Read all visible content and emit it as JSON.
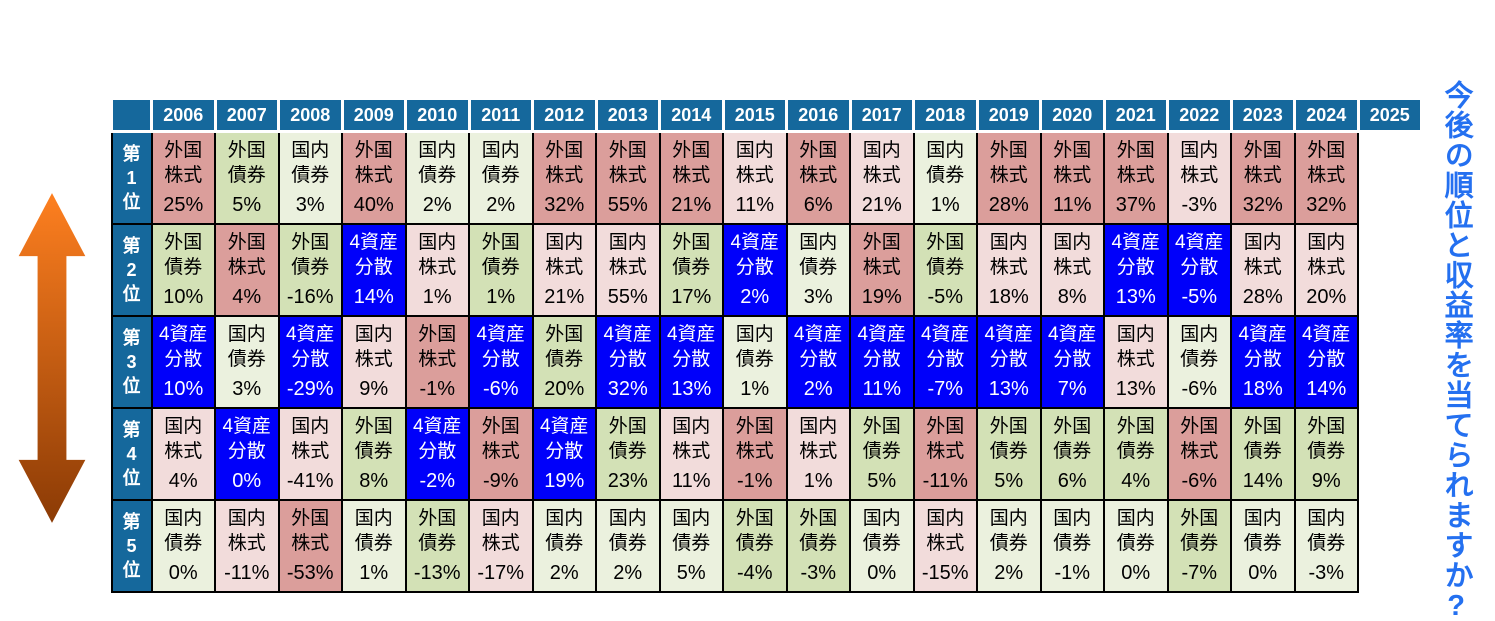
{
  "side_text": "今後の順位と収益率を当てられますか?",
  "colors": {
    "header_bg": "#15689C",
    "header_fg": "#FFFFFF",
    "grid": "#000000",
    "side_text": "#2470F0",
    "arrow_top": "#FF8020",
    "arrow_bottom": "#8A3A05"
  },
  "asset_classes": {
    "foreign_stock": {
      "label": "外国株式",
      "line1": "外国",
      "line2": "株式",
      "bg": "#DB9E9B",
      "fg": "#000000"
    },
    "domestic_stock": {
      "label": "国内株式",
      "line1": "国内",
      "line2": "株式",
      "bg": "#F2DCDB",
      "fg": "#000000"
    },
    "foreign_bond": {
      "label": "外国債券",
      "line1": "外国",
      "line2": "債券",
      "bg": "#D3E1B6",
      "fg": "#000000"
    },
    "domestic_bond": {
      "label": "国内債券",
      "line1": "国内",
      "line2": "債券",
      "bg": "#EBF1DE",
      "fg": "#000000"
    },
    "four_asset": {
      "label": "4資産分散",
      "line1": "4資産",
      "line2": "分散",
      "bg": "#0000FA",
      "fg": "#FFFFFF"
    }
  },
  "chart_data": {
    "type": "table",
    "years": [
      "2006",
      "2007",
      "2008",
      "2009",
      "2010",
      "2011",
      "2012",
      "2013",
      "2014",
      "2015",
      "2016",
      "2017",
      "2018",
      "2019",
      "2020",
      "2021",
      "2022",
      "2023",
      "2024",
      "2025"
    ],
    "ranks": [
      "第1位",
      "第2位",
      "第3位",
      "第4位",
      "第5位"
    ],
    "rows": [
      {
        "rank": "第1位",
        "cells": [
          {
            "asset": "foreign_stock",
            "value": "25%"
          },
          {
            "asset": "foreign_bond",
            "value": "5%"
          },
          {
            "asset": "domestic_bond",
            "value": "3%"
          },
          {
            "asset": "foreign_stock",
            "value": "40%"
          },
          {
            "asset": "domestic_bond",
            "value": "2%"
          },
          {
            "asset": "domestic_bond",
            "value": "2%"
          },
          {
            "asset": "foreign_stock",
            "value": "32%"
          },
          {
            "asset": "foreign_stock",
            "value": "55%"
          },
          {
            "asset": "foreign_stock",
            "value": "21%"
          },
          {
            "asset": "domestic_stock",
            "value": "11%"
          },
          {
            "asset": "foreign_stock",
            "value": "6%"
          },
          {
            "asset": "domestic_stock",
            "value": "21%"
          },
          {
            "asset": "domestic_bond",
            "value": "1%"
          },
          {
            "asset": "foreign_stock",
            "value": "28%"
          },
          {
            "asset": "foreign_stock",
            "value": "11%"
          },
          {
            "asset": "foreign_stock",
            "value": "37%"
          },
          {
            "asset": "domestic_stock",
            "value": "-3%"
          },
          {
            "asset": "foreign_stock",
            "value": "32%"
          },
          {
            "asset": "foreign_stock",
            "value": "32%"
          }
        ]
      },
      {
        "rank": "第2位",
        "cells": [
          {
            "asset": "foreign_bond",
            "value": "10%"
          },
          {
            "asset": "foreign_stock",
            "value": "4%"
          },
          {
            "asset": "foreign_bond",
            "value": "-16%"
          },
          {
            "asset": "four_asset",
            "value": "14%"
          },
          {
            "asset": "domestic_stock",
            "value": "1%"
          },
          {
            "asset": "foreign_bond",
            "value": "1%"
          },
          {
            "asset": "domestic_stock",
            "value": "21%"
          },
          {
            "asset": "domestic_stock",
            "value": "55%"
          },
          {
            "asset": "foreign_bond",
            "value": "17%"
          },
          {
            "asset": "four_asset",
            "value": "2%"
          },
          {
            "asset": "domestic_bond",
            "value": "3%"
          },
          {
            "asset": "foreign_stock",
            "value": "19%"
          },
          {
            "asset": "foreign_bond",
            "value": "-5%"
          },
          {
            "asset": "domestic_stock",
            "value": "18%"
          },
          {
            "asset": "domestic_stock",
            "value": "8%"
          },
          {
            "asset": "four_asset",
            "value": "13%"
          },
          {
            "asset": "four_asset",
            "value": "-5%"
          },
          {
            "asset": "domestic_stock",
            "value": "28%"
          },
          {
            "asset": "domestic_stock",
            "value": "20%"
          }
        ]
      },
      {
        "rank": "第3位",
        "cells": [
          {
            "asset": "four_asset",
            "value": "10%"
          },
          {
            "asset": "domestic_bond",
            "value": "3%"
          },
          {
            "asset": "four_asset",
            "value": "-29%"
          },
          {
            "asset": "domestic_stock",
            "value": "9%"
          },
          {
            "asset": "foreign_stock",
            "value": "-1%"
          },
          {
            "asset": "four_asset",
            "value": "-6%"
          },
          {
            "asset": "foreign_bond",
            "value": "20%"
          },
          {
            "asset": "four_asset",
            "value": "32%"
          },
          {
            "asset": "four_asset",
            "value": "13%"
          },
          {
            "asset": "domestic_bond",
            "value": "1%"
          },
          {
            "asset": "four_asset",
            "value": "2%"
          },
          {
            "asset": "four_asset",
            "value": "11%"
          },
          {
            "asset": "four_asset",
            "value": "-7%"
          },
          {
            "asset": "four_asset",
            "value": "13%"
          },
          {
            "asset": "four_asset",
            "value": "7%"
          },
          {
            "asset": "domestic_stock",
            "value": "13%"
          },
          {
            "asset": "domestic_bond",
            "value": "-6%"
          },
          {
            "asset": "four_asset",
            "value": "18%"
          },
          {
            "asset": "four_asset",
            "value": "14%"
          }
        ]
      },
      {
        "rank": "第4位",
        "cells": [
          {
            "asset": "domestic_stock",
            "value": "4%"
          },
          {
            "asset": "four_asset",
            "value": "0%"
          },
          {
            "asset": "domestic_stock",
            "value": "-41%"
          },
          {
            "asset": "foreign_bond",
            "value": "8%"
          },
          {
            "asset": "four_asset",
            "value": "-2%"
          },
          {
            "asset": "foreign_stock",
            "value": "-9%"
          },
          {
            "asset": "four_asset",
            "value": "19%"
          },
          {
            "asset": "foreign_bond",
            "value": "23%"
          },
          {
            "asset": "domestic_stock",
            "value": "11%"
          },
          {
            "asset": "foreign_stock",
            "value": "-1%"
          },
          {
            "asset": "domestic_stock",
            "value": "1%"
          },
          {
            "asset": "foreign_bond",
            "value": "5%"
          },
          {
            "asset": "foreign_stock",
            "value": "-11%"
          },
          {
            "asset": "foreign_bond",
            "value": "5%"
          },
          {
            "asset": "foreign_bond",
            "value": "6%"
          },
          {
            "asset": "foreign_bond",
            "value": "4%"
          },
          {
            "asset": "foreign_stock",
            "value": "-6%"
          },
          {
            "asset": "foreign_bond",
            "value": "14%"
          },
          {
            "asset": "foreign_bond",
            "value": "9%"
          }
        ]
      },
      {
        "rank": "第5位",
        "cells": [
          {
            "asset": "domestic_bond",
            "value": "0%"
          },
          {
            "asset": "domestic_stock",
            "value": "-11%"
          },
          {
            "asset": "foreign_stock",
            "value": "-53%"
          },
          {
            "asset": "domestic_bond",
            "value": "1%"
          },
          {
            "asset": "foreign_bond",
            "value": "-13%"
          },
          {
            "asset": "domestic_stock",
            "value": "-17%"
          },
          {
            "asset": "domestic_bond",
            "value": "2%"
          },
          {
            "asset": "domestic_bond",
            "value": "2%"
          },
          {
            "asset": "domestic_bond",
            "value": "5%"
          },
          {
            "asset": "foreign_bond",
            "value": "-4%"
          },
          {
            "asset": "foreign_bond",
            "value": "-3%"
          },
          {
            "asset": "domestic_bond",
            "value": "0%"
          },
          {
            "asset": "domestic_stock",
            "value": "-15%"
          },
          {
            "asset": "domestic_bond",
            "value": "2%"
          },
          {
            "asset": "domestic_bond",
            "value": "-1%"
          },
          {
            "asset": "domestic_bond",
            "value": "0%"
          },
          {
            "asset": "foreign_bond",
            "value": "-7%"
          },
          {
            "asset": "domestic_bond",
            "value": "0%"
          },
          {
            "asset": "domestic_bond",
            "value": "-3%"
          }
        ]
      }
    ]
  }
}
